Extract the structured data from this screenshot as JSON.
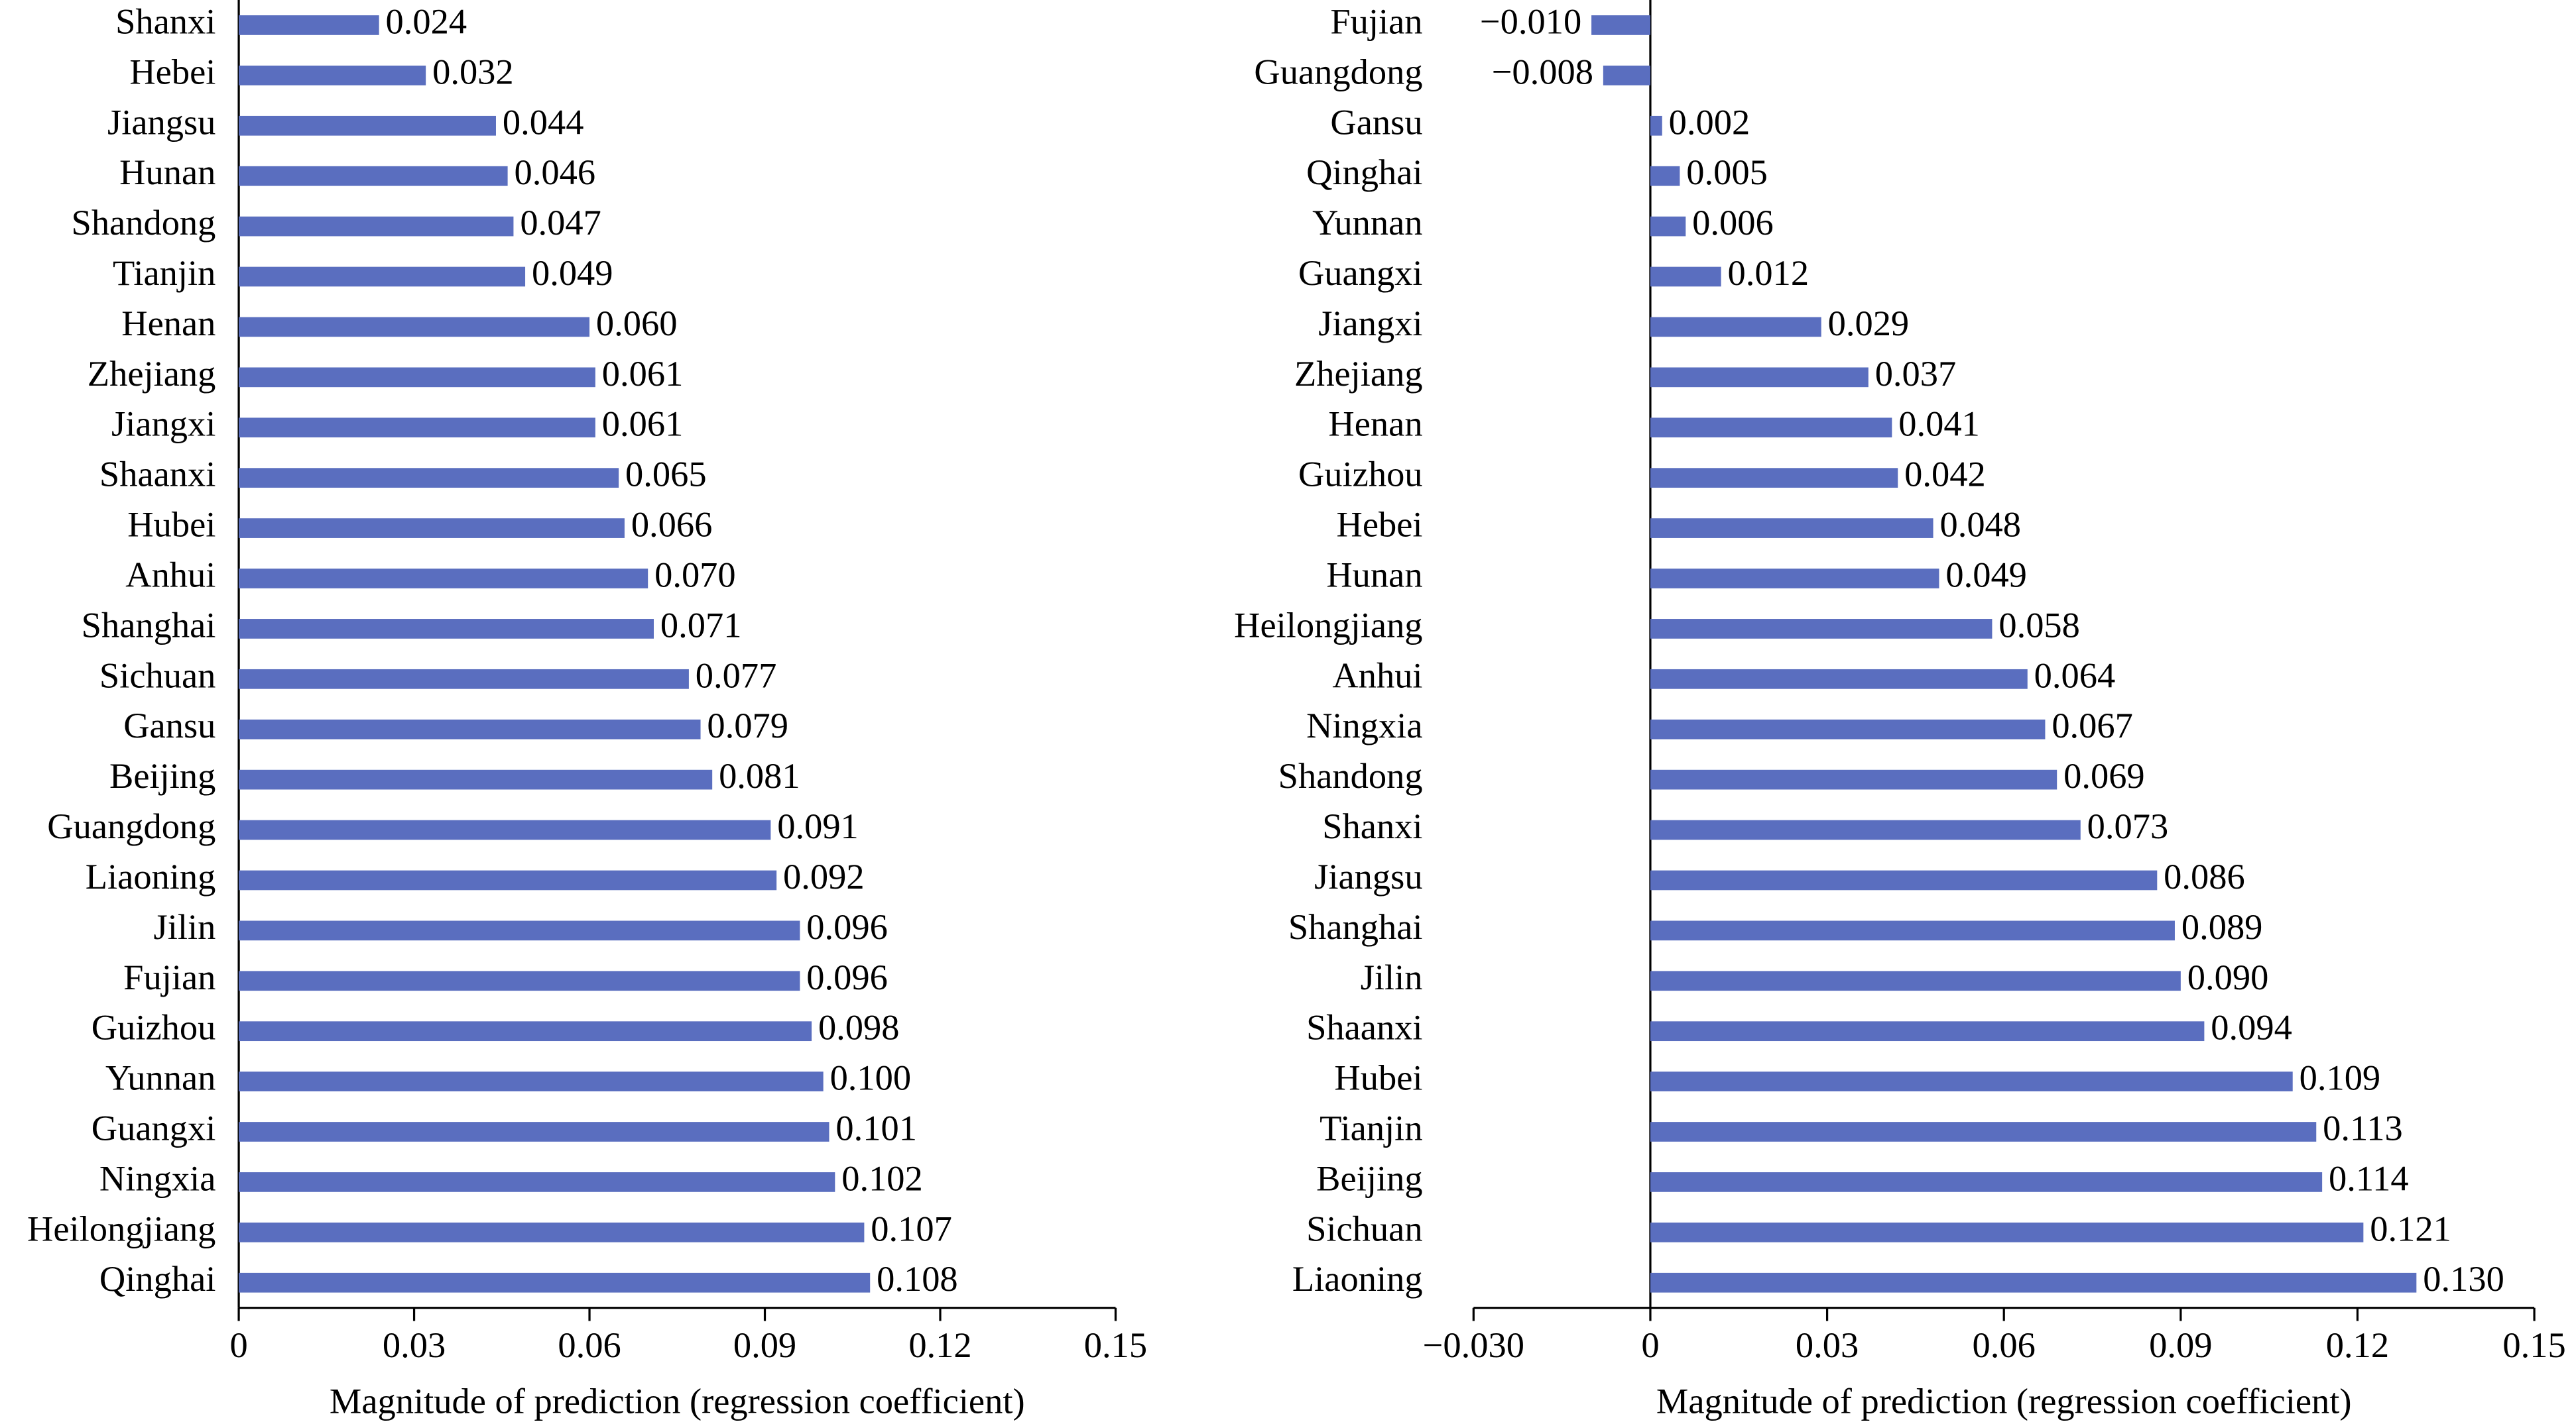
{
  "chart_data": [
    {
      "type": "bar",
      "orientation": "horizontal",
      "x_label": "Magnitude of prediction (regression coefficient)",
      "color": "#5a6ebf",
      "categories": [
        "Shanxi",
        "Hebei",
        "Jiangsu",
        "Hunan",
        "Shandong",
        "Tianjin",
        "Henan",
        "Zhejiang",
        "Jiangxi",
        "Shaanxi",
        "Hubei",
        "Anhui",
        "Shanghai",
        "Sichuan",
        "Gansu",
        "Beijing",
        "Guangdong",
        "Liaoning",
        "Jilin",
        "Fujian",
        "Guizhou",
        "Yunnan",
        "Guangxi",
        "Ningxia",
        "Heilongjiang",
        "Qinghai"
      ],
      "values": [
        0.024,
        0.032,
        0.044,
        0.046,
        0.047,
        0.049,
        0.06,
        0.061,
        0.061,
        0.065,
        0.066,
        0.07,
        0.071,
        0.077,
        0.079,
        0.081,
        0.091,
        0.092,
        0.096,
        0.096,
        0.098,
        0.1,
        0.101,
        0.102,
        0.107,
        0.108
      ],
      "value_labels": [
        "0.024",
        "0.032",
        "0.044",
        "0.046",
        "0.047",
        "0.049",
        "0.060",
        "0.061",
        "0.061",
        "0.065",
        "0.066",
        "0.070",
        "0.071",
        "0.077",
        "0.079",
        "0.081",
        "0.091",
        "0.092",
        "0.096",
        "0.096",
        "0.098",
        "0.100",
        "0.101",
        "0.102",
        "0.107",
        "0.108"
      ],
      "xlim": [
        0,
        0.15
      ],
      "xticks": [
        0,
        0.03,
        0.06,
        0.09,
        0.12,
        0.15
      ]
    },
    {
      "type": "bar",
      "orientation": "horizontal",
      "x_label": "Magnitude of prediction (regression coefficient)",
      "color": "#5a6ebf",
      "categories": [
        "Fujian",
        "Guangdong",
        "Gansu",
        "Qinghai",
        "Yunnan",
        "Guangxi",
        "Jiangxi",
        "Zhejiang",
        "Henan",
        "Guizhou",
        "Hebei",
        "Hunan",
        "Heilongjiang",
        "Anhui",
        "Ningxia",
        "Shandong",
        "Shanxi",
        "Jiangsu",
        "Shanghai",
        "Jilin",
        "Shaanxi",
        "Hubei",
        "Tianjin",
        "Beijing",
        "Sichuan",
        "Liaoning"
      ],
      "values": [
        -0.01,
        -0.008,
        0.002,
        0.005,
        0.006,
        0.012,
        0.029,
        0.037,
        0.041,
        0.042,
        0.048,
        0.049,
        0.058,
        0.064,
        0.067,
        0.069,
        0.073,
        0.086,
        0.089,
        0.09,
        0.094,
        0.109,
        0.113,
        0.114,
        0.121,
        0.13
      ],
      "value_labels": [
        "−0.010",
        "−0.008",
        "0.002",
        "0.005",
        "0.006",
        "0.012",
        "0.029",
        "0.037",
        "0.041",
        "0.042",
        "0.048",
        "0.049",
        "0.058",
        "0.064",
        "0.067",
        "0.069",
        "0.073",
        "0.086",
        "0.089",
        "0.090",
        "0.094",
        "0.109",
        "0.113",
        "0.114",
        "0.121",
        "0.130"
      ],
      "xlim": [
        -0.03,
        0.15
      ],
      "xticks": [
        {
          "value": -0.03,
          "label": "−0.030"
        },
        0,
        0.03,
        0.06,
        0.09,
        0.12,
        0.15
      ]
    }
  ]
}
